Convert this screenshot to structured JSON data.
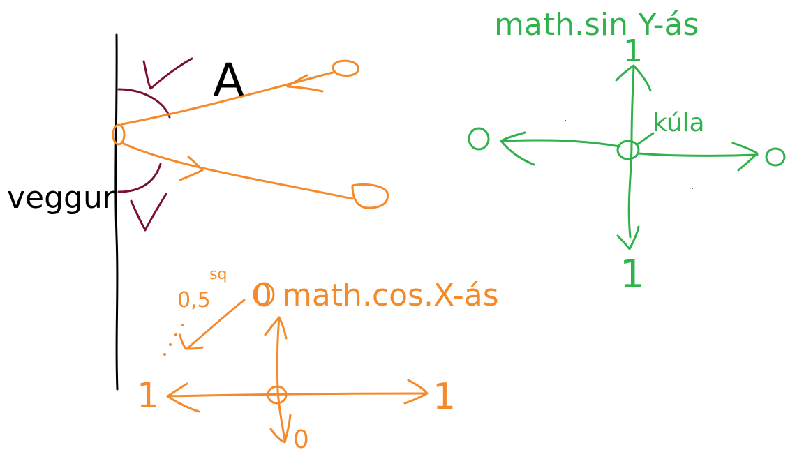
{
  "labels": {
    "wall": "veggur",
    "angle": "A",
    "sin_title": "math.sin  Y-ás",
    "ball": "kúla",
    "sin_left": "0",
    "sin_right": "0",
    "sin_top": "1",
    "sin_bottom": "1",
    "cos_title": "0  math.cos.X-ás",
    "cos_diag": "0,5",
    "cos_diag_sup": "sq",
    "cos_left": "1",
    "cos_right": "1",
    "cos_bottom": "0"
  },
  "colors": {
    "black": "#000000",
    "maroon": "#7a1030",
    "orange": "#f58a2a",
    "green": "#2fb24b"
  }
}
